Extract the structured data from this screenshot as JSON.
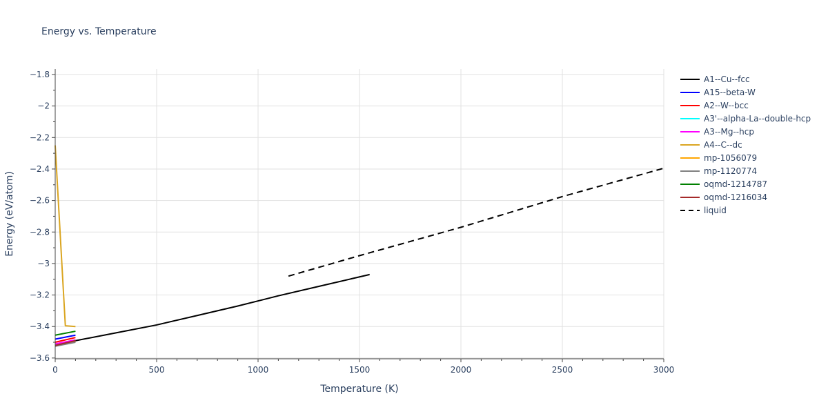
{
  "chart_data": {
    "type": "line",
    "title": "Energy vs. Temperature",
    "xlabel": "Temperature (K)",
    "ylabel": "Energy (eV/atom)",
    "xlim": [
      0,
      3000
    ],
    "ylim": [
      -3.605,
      -1.765
    ],
    "x_ticks": [
      0,
      500,
      1000,
      1500,
      2000,
      2500,
      3000
    ],
    "x_tick_labels": [
      "0",
      "500",
      "1000",
      "1500",
      "2000",
      "2500",
      "3000"
    ],
    "y_ticks": [
      -3.6,
      -3.4,
      -3.2,
      -3.0,
      -2.8,
      -2.6,
      -2.4,
      -2.2,
      -2.0,
      -1.8
    ],
    "y_tick_labels": [
      "−3.6",
      "−3.4",
      "−3.2",
      "−3",
      "−2.8",
      "−2.6",
      "−2.4",
      "−2.2",
      "−2",
      "−1.8"
    ],
    "grid": true,
    "legend_position": "right",
    "series": [
      {
        "name": "A1--Cu--fcc",
        "color": "#000000",
        "dash": "solid",
        "x": [
          0,
          100,
          300,
          500,
          700,
          900,
          1100,
          1300,
          1550
        ],
        "y": [
          -3.52,
          -3.49,
          -3.44,
          -3.39,
          -3.33,
          -3.27,
          -3.205,
          -3.145,
          -3.07
        ]
      },
      {
        "name": "A15--beta-W",
        "color": "#0000ff",
        "dash": "solid",
        "x": [
          0,
          100
        ],
        "y": [
          -3.48,
          -3.455
        ]
      },
      {
        "name": "A2--W--bcc",
        "color": "#ff0000",
        "dash": "solid",
        "x": [
          0,
          100
        ],
        "y": [
          -3.5,
          -3.47
        ]
      },
      {
        "name": "A3'--alpha-La--double-hcp",
        "color": "#00ffff",
        "dash": "solid",
        "x": [
          0,
          100
        ],
        "y": [
          -3.515,
          -3.49
        ]
      },
      {
        "name": "A3--Mg--hcp",
        "color": "#ff00ff",
        "dash": "solid",
        "x": [
          0,
          100
        ],
        "y": [
          -3.51,
          -3.485
        ]
      },
      {
        "name": "A4--C--dc",
        "color": "#daa520",
        "dash": "solid",
        "x": [
          0,
          50,
          100
        ],
        "y": [
          -2.25,
          -3.395,
          -3.4
        ]
      },
      {
        "name": "mp-1056079",
        "color": "#ffa500",
        "dash": "solid",
        "x": [
          0,
          100
        ],
        "y": [
          -3.52,
          -3.495
        ]
      },
      {
        "name": "mp-1120774",
        "color": "#808080",
        "dash": "solid",
        "x": [
          0,
          100
        ],
        "y": [
          -3.525,
          -3.5
        ]
      },
      {
        "name": "oqmd-1214787",
        "color": "#008000",
        "dash": "solid",
        "x": [
          0,
          100
        ],
        "y": [
          -3.455,
          -3.43
        ]
      },
      {
        "name": "oqmd-1216034",
        "color": "#a52a2a",
        "dash": "solid",
        "x": [
          0,
          100
        ],
        "y": [
          -3.52,
          -3.49
        ]
      },
      {
        "name": "liquid",
        "color": "#000000",
        "dash": "dash",
        "x": [
          1150,
          1500,
          2000,
          2500,
          3000
        ],
        "y": [
          -3.08,
          -2.95,
          -2.77,
          -2.575,
          -2.395
        ]
      }
    ]
  }
}
